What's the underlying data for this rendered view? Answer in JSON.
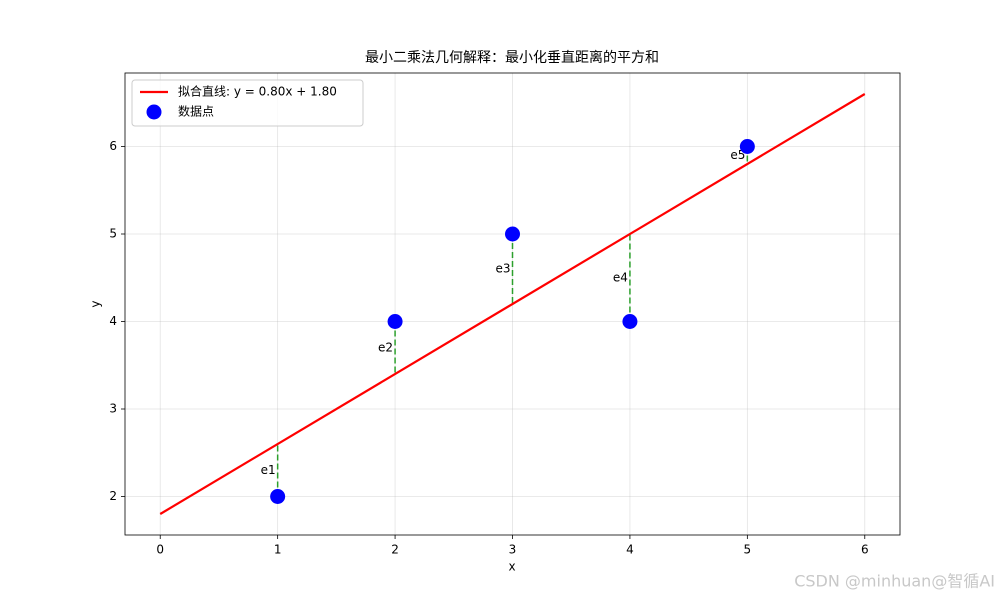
{
  "chart_data": {
    "type": "scatter",
    "title": "最小二乘法几何解释：最小化垂直距离的平方和",
    "xlabel": "x",
    "ylabel": "y",
    "xlim": [
      -0.3,
      6.3
    ],
    "ylim": [
      1.56,
      6.84
    ],
    "xticks": [
      0,
      1,
      2,
      3,
      4,
      5,
      6
    ],
    "yticks": [
      2,
      3,
      4,
      5,
      6
    ],
    "grid": true,
    "legend": "upper left",
    "series": [
      {
        "name": "拟合直线: y = 0.80x + 1.80",
        "type": "line",
        "color": "#ff0000",
        "x": [
          0,
          6
        ],
        "values": [
          1.8,
          6.6
        ]
      },
      {
        "name": "数据点",
        "type": "points",
        "color": "#0000ff",
        "x": [
          1,
          2,
          3,
          4,
          5
        ],
        "values": [
          2,
          4,
          5,
          4,
          6
        ]
      }
    ],
    "residuals": {
      "labels": [
        "e1",
        "e2",
        "e3",
        "e4",
        "e5"
      ],
      "color": "#2ca02c",
      "values": [
        2.6,
        3.4,
        4.2,
        5.0,
        5.8
      ]
    }
  },
  "watermark": "CSDN @minhuan@智循AI"
}
